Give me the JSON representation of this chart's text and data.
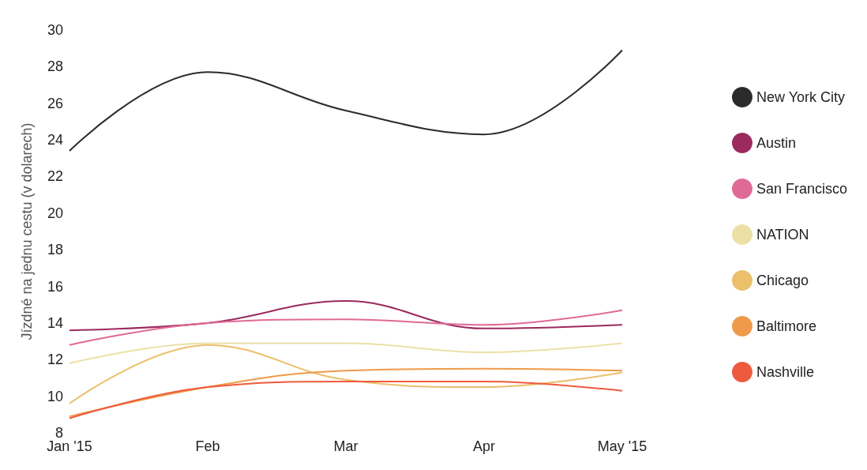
{
  "chart_data": {
    "type": "line",
    "ylabel": "Jízdné na jednu cestu (v dolarech)",
    "categories": [
      "Jan '15",
      "Feb",
      "Mar",
      "Apr",
      "May '15"
    ],
    "ylim": [
      8,
      30
    ],
    "yticks": [
      8,
      10,
      12,
      14,
      16,
      18,
      20,
      22,
      24,
      26,
      28,
      30
    ],
    "grid": false,
    "legend": "right",
    "marker": "none",
    "line_style": "solid",
    "series": [
      {
        "name": "New York City",
        "color": "#2b2b2b",
        "values": [
          23.4,
          27.7,
          25.6,
          24.3,
          28.9
        ]
      },
      {
        "name": "Austin",
        "color": "#9b2a5e",
        "values": [
          13.6,
          14.0,
          15.2,
          13.7,
          13.9
        ]
      },
      {
        "name": "San Francisco",
        "color": "#e06a96",
        "values": [
          12.8,
          14.0,
          14.2,
          13.9,
          14.7
        ]
      },
      {
        "name": "NATION",
        "color": "#ece0a6",
        "values": [
          11.8,
          12.9,
          12.9,
          12.4,
          12.9
        ]
      },
      {
        "name": "Chicago",
        "color": "#ecbf6a",
        "values": [
          9.6,
          12.8,
          10.9,
          10.5,
          11.3
        ]
      },
      {
        "name": "Baltimore",
        "color": "#ef9a4a",
        "values": [
          8.9,
          10.5,
          11.4,
          11.5,
          11.4
        ]
      },
      {
        "name": "Nashville",
        "color": "#ee5a3e",
        "values": [
          8.8,
          10.5,
          10.8,
          10.8,
          10.3
        ]
      }
    ]
  }
}
